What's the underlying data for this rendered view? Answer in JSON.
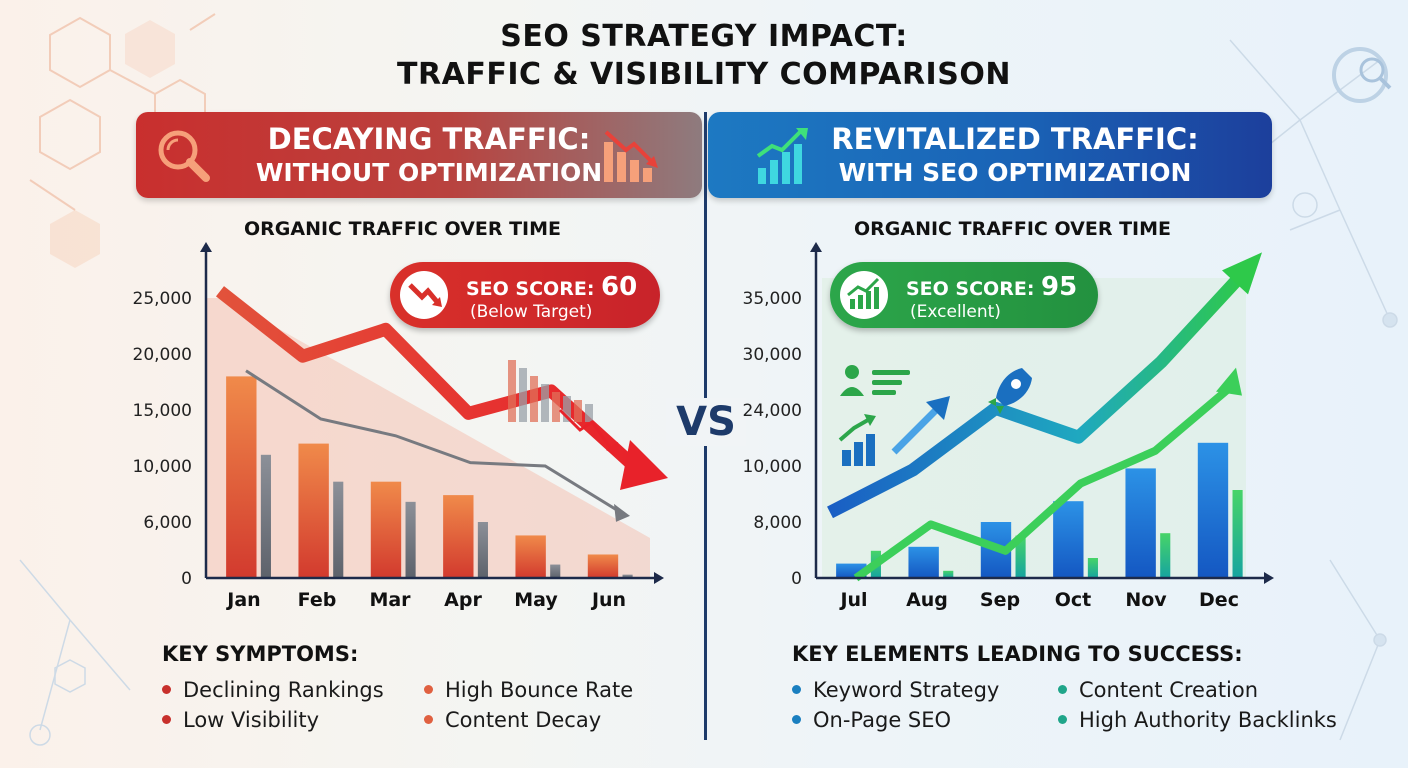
{
  "title": {
    "line1": "SEO STRATEGY IMPACT:",
    "line2": "TRAFFIC & VISIBILITY COMPARISON"
  },
  "left_panel": {
    "banner_line1": "DECAYING TRAFFIC:",
    "banner_line2": "WITHOUT OPTIMIZATION",
    "chart_title": "ORGANIC TRAFFIC OVER TIME",
    "badge_label": "SEO SCORE:",
    "badge_value": "60",
    "badge_sub": "(Below Target)",
    "list_title": "KEY SYMPTOMS:",
    "list_items": [
      "Declining Rankings",
      "High Bounce Rate",
      "Low Visibility",
      "Content Decay"
    ],
    "accent": "#c8302c"
  },
  "right_panel": {
    "banner_line1": "REVITALIZED TRAFFIC:",
    "banner_line2": "WITH SEO OPTIMIZATION",
    "chart_title": "ORGANIC TRAFFIC OVER TIME",
    "badge_label": "SEO SCORE:",
    "badge_value": "95",
    "badge_sub": "(Excellent)",
    "list_title": "KEY ELEMENTS LEADING TO SUCCESS:",
    "list_items": [
      "Keyword Strategy",
      "Content Creation",
      "On-Page SEO",
      "High Authority Backlinks"
    ],
    "accent": "#1a6fc0"
  },
  "vs_label": "VS",
  "chart_data": [
    {
      "type": "bar",
      "categories": [
        "Jan",
        "Feb",
        "Mar",
        "Apr",
        "May",
        "Jun"
      ],
      "ytick_labels": [
        "0",
        "6,000",
        "10,000",
        "15,000",
        "20,000",
        "25,000"
      ],
      "ylim": [
        0,
        25000
      ],
      "series": [
        {
          "values": [
            18000,
            12000,
            8600,
            7400,
            3800,
            2100
          ]
        },
        {
          "values": [
            11000,
            8600,
            6800,
            5000,
            1200,
            300
          ]
        }
      ],
      "trend_lines": [
        {
          "values": [
            25600,
            19800,
            22200,
            14700,
            16700,
            10000
          ]
        },
        {
          "values": [
            18500,
            14200,
            12700,
            10300,
            10000,
            5900
          ]
        }
      ],
      "xlabel": "",
      "ylabel": "",
      "grid": true
    },
    {
      "type": "bar",
      "categories": [
        "Jul",
        "Aug",
        "Sep",
        "Oct",
        "Nov",
        "Dec"
      ],
      "ytick_labels": [
        "0",
        "8,000",
        "10,000",
        "24,000",
        "30,000",
        "35,000"
      ],
      "ylim": [
        0,
        35000
      ],
      "series": [
        {
          "values": [
            1800,
            3900,
            7000,
            9600,
            13700,
            16900
          ]
        },
        {
          "values": [
            3400,
            900,
            5300,
            2500,
            5600,
            11000
          ]
        }
      ],
      "trend_lines": [
        {
          "values": [
            8200,
            13500,
            21200,
            17600,
            27000,
            38200
          ]
        },
        {
          "values": [
            0,
            6700,
            3400,
            11800,
            15900,
            23800
          ]
        }
      ],
      "xlabel": "",
      "ylabel": "",
      "grid": true
    }
  ]
}
